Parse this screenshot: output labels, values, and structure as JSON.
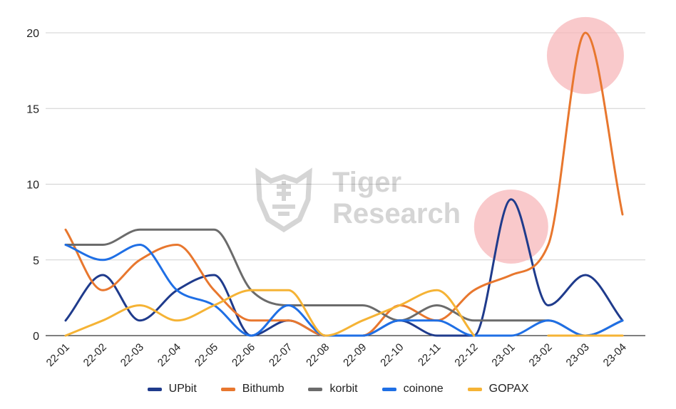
{
  "watermark": {
    "line1": "Tiger",
    "line2": "Research"
  },
  "chart_data": {
    "type": "line",
    "title": "",
    "xlabel": "",
    "ylabel": "",
    "categories": [
      "22-01",
      "22-02",
      "22-03",
      "22-04",
      "22-05",
      "22-06",
      "22-07",
      "22-08",
      "22-09",
      "22-10",
      "22-11",
      "22-12",
      "23-01",
      "23-02",
      "23-03",
      "23-04"
    ],
    "ylim": [
      0,
      20
    ],
    "yticks": [
      0,
      5,
      10,
      15,
      20
    ],
    "grid": true,
    "legend_position": "bottom",
    "series": [
      {
        "name": "UPbit",
        "color": "#1f3b8c",
        "values": [
          1,
          4,
          1,
          3,
          4,
          0,
          1,
          0,
          0,
          1,
          0,
          0,
          9,
          2,
          4,
          1
        ]
      },
      {
        "name": "Bithumb",
        "color": "#e8772e",
        "values": [
          7,
          3,
          5,
          6,
          3,
          1,
          1,
          0,
          0,
          2,
          1,
          3,
          4,
          6,
          20,
          8
        ]
      },
      {
        "name": "korbit",
        "color": "#6b6b6b",
        "values": [
          6,
          6,
          7,
          7,
          7,
          3,
          2,
          2,
          2,
          1,
          2,
          1,
          1,
          1,
          0,
          1
        ]
      },
      {
        "name": "coinone",
        "color": "#1f6fe5",
        "values": [
          6,
          5,
          6,
          3,
          2,
          0,
          2,
          0,
          0,
          1,
          1,
          0,
          0,
          1,
          0,
          1
        ]
      },
      {
        "name": "GOPAX",
        "color": "#f5b335",
        "values": [
          0,
          1,
          2,
          1,
          2,
          3,
          3,
          0,
          1,
          2,
          3,
          0,
          null,
          0,
          0,
          0
        ]
      }
    ],
    "highlights": [
      {
        "category": "23-01",
        "value": 7.2,
        "color": "#f7b7b9"
      },
      {
        "category": "23-03",
        "value": 18.5,
        "color": "#f7b7b9"
      }
    ]
  }
}
